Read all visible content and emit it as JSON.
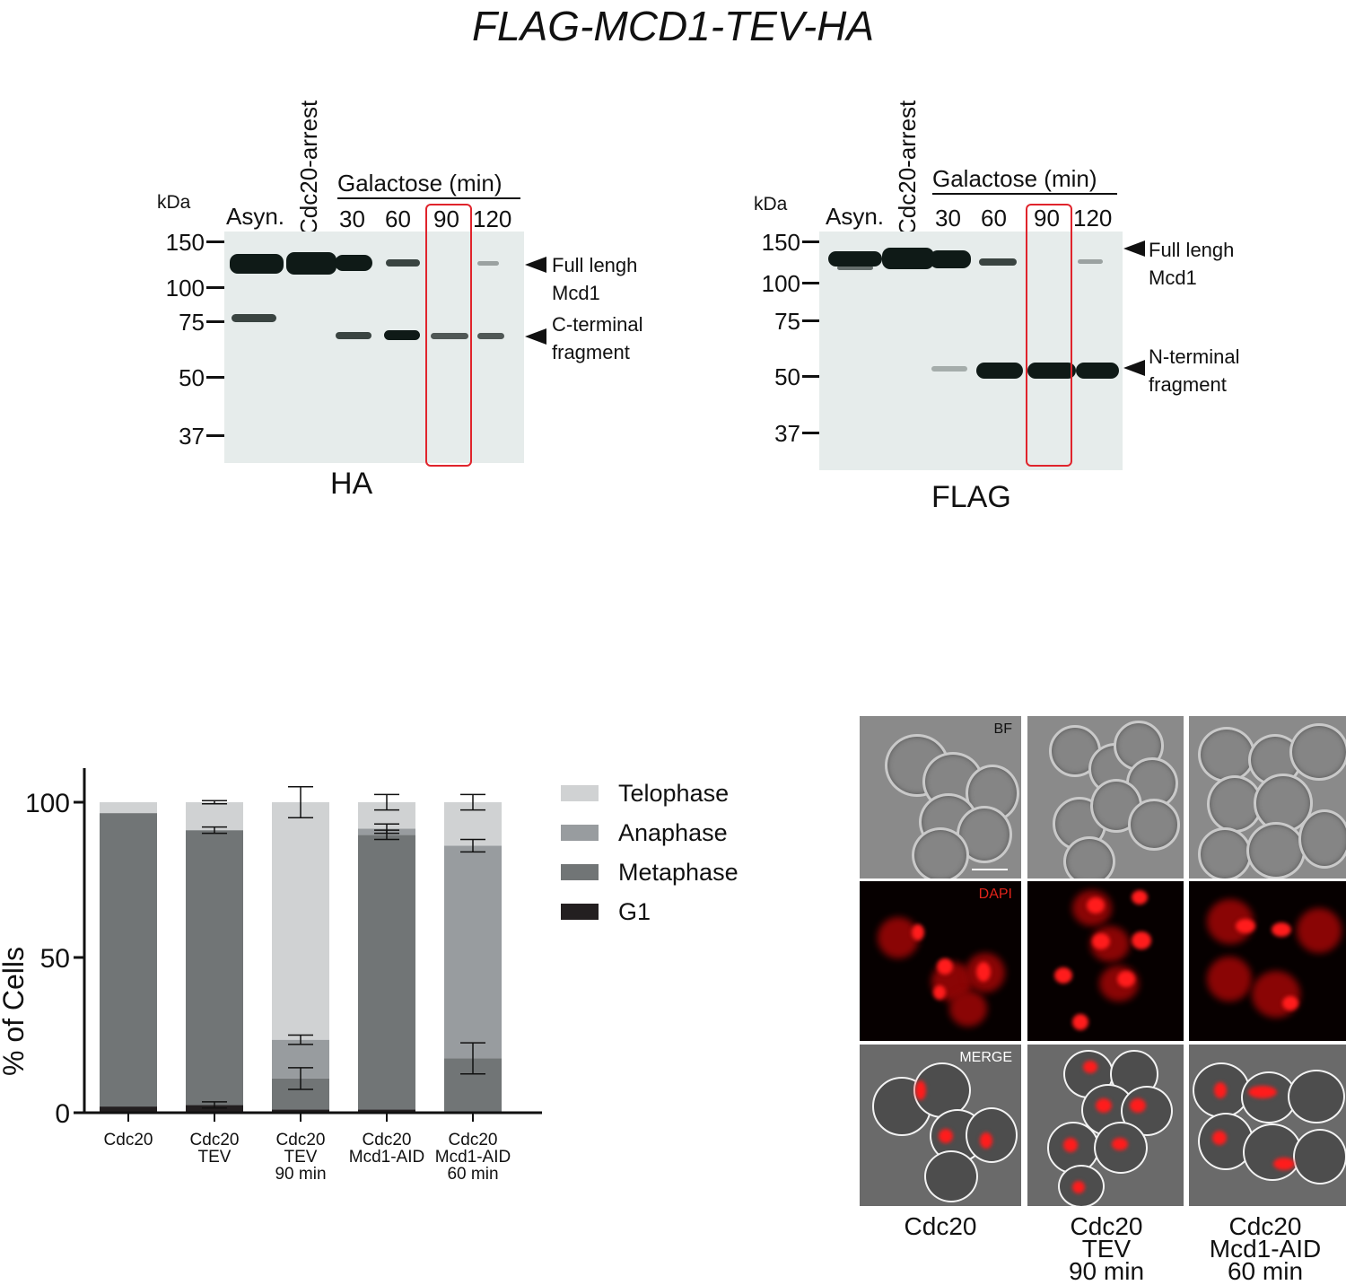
{
  "title": "FLAG-MCD1-TEV-HA",
  "blots": [
    {
      "antibody": "HA",
      "kda_label": "kDa",
      "lanes": [
        "Asyn.",
        "Cdc20-arrest",
        "30",
        "60",
        "90",
        "120"
      ],
      "galactose_label": "Galactose (min)",
      "markers": [
        "150",
        "100",
        "75",
        "50",
        "37"
      ],
      "annotations": [
        {
          "line1": "Full lengh",
          "line2": "Mcd1"
        },
        {
          "line1": "C-terminal",
          "line2": "fragment"
        }
      ]
    },
    {
      "antibody": "FLAG",
      "kda_label": "kDa",
      "lanes": [
        "Asyn.",
        "Cdc20-arrest",
        "30",
        "60",
        "90",
        "120"
      ],
      "galactose_label": "Galactose (min)",
      "markers": [
        "150",
        "100",
        "75",
        "50",
        "37"
      ],
      "annotations": [
        {
          "line1": "Full lengh",
          "line2": "Mcd1"
        },
        {
          "line1": "N-terminal",
          "line2": "fragment"
        }
      ]
    }
  ],
  "chart_data": {
    "type": "bar",
    "stacked": true,
    "ylabel": "% of Cells",
    "ylim": [
      0,
      100
    ],
    "yticks": [
      "0",
      "50",
      "100"
    ],
    "categories": [
      [
        "Cdc20"
      ],
      [
        "Cdc20",
        "TEV"
      ],
      [
        "Cdc20",
        "TEV",
        "90 min"
      ],
      [
        "Cdc20",
        "Mcd1-AID"
      ],
      [
        "Cdc20",
        "Mcd1-AID",
        "60 min"
      ]
    ],
    "series": [
      {
        "name": "G1",
        "color": "#231f20",
        "values": [
          2,
          2.5,
          1,
          1,
          0
        ]
      },
      {
        "name": "Metaphase",
        "color": "#717576",
        "values": [
          94.5,
          88.5,
          10,
          88.5,
          17.5
        ]
      },
      {
        "name": "Anaphase",
        "color": "#989c9f",
        "values": [
          0,
          0,
          12.5,
          2,
          68.5
        ]
      },
      {
        "name": "Telophase",
        "color": "#d0d2d3",
        "values": [
          3.5,
          9,
          76.5,
          8.5,
          14
        ]
      }
    ],
    "legend_order": [
      "Telophase",
      "Anaphase",
      "Metaphase",
      "G1"
    ],
    "legend_position": "right",
    "error_bars": [
      {
        "bar": 1,
        "y": 2.5,
        "err": 1
      },
      {
        "bar": 1,
        "y": 91,
        "err": 1
      },
      {
        "bar": 1,
        "y": 100,
        "err": 0.5
      },
      {
        "bar": 2,
        "y": 11,
        "err": 3.5
      },
      {
        "bar": 2,
        "y": 23.5,
        "err": 1.5
      },
      {
        "bar": 2,
        "y": 100,
        "err": 5
      },
      {
        "bar": 3,
        "y": 89.5,
        "err": 1.5
      },
      {
        "bar": 3,
        "y": 91.5,
        "err": 1.5
      },
      {
        "bar": 3,
        "y": 100,
        "err": 2.5
      },
      {
        "bar": 4,
        "y": 17.5,
        "err": 5
      },
      {
        "bar": 4,
        "y": 86,
        "err": 2
      },
      {
        "bar": 4,
        "y": 100,
        "err": 2.5
      }
    ]
  },
  "microscopy": {
    "rows": [
      "BF",
      "DAPI",
      "MERGE"
    ],
    "columns": [
      [
        "Cdc20"
      ],
      [
        "Cdc20",
        "TEV",
        "90 min"
      ],
      [
        "Cdc20",
        "Mcd1-AID",
        "60 min"
      ]
    ]
  }
}
